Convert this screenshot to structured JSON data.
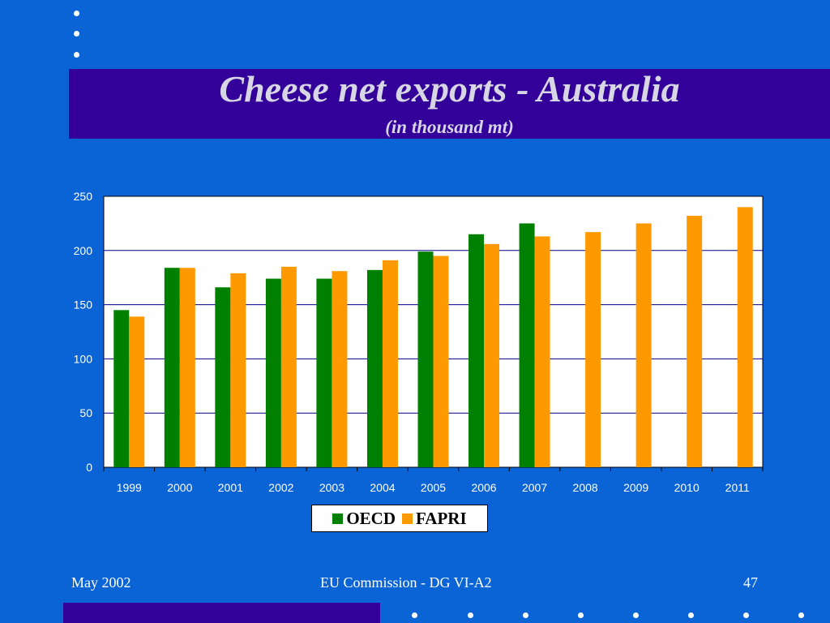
{
  "slide": {
    "title": "Cheese net exports - Australia",
    "subtitle": "(in thousand mt)",
    "footer_left": "May 2002",
    "footer_center": "EU Commission - DG VI-A2",
    "footer_right": "47"
  },
  "colors": {
    "background": "#0b64d6",
    "title_band": "#330099",
    "oecd": "#008000",
    "fapri": "#ff9900"
  },
  "chart_data": {
    "type": "bar",
    "title": "",
    "xlabel": "",
    "ylabel": "",
    "ylim": [
      0,
      250
    ],
    "yticks": [
      0,
      50,
      100,
      150,
      200,
      250
    ],
    "grid": true,
    "legend_position": "bottom",
    "categories": [
      "1999",
      "2000",
      "2001",
      "2002",
      "2003",
      "2004",
      "2005",
      "2006",
      "2007",
      "2008",
      "2009",
      "2010",
      "2011"
    ],
    "series": [
      {
        "name": "OECD",
        "color": "#008000",
        "values": [
          145,
          184,
          166,
          174,
          174,
          182,
          199,
          215,
          225,
          null,
          null,
          null,
          null
        ]
      },
      {
        "name": "FAPRI",
        "color": "#ff9900",
        "values": [
          139,
          184,
          179,
          185,
          181,
          191,
          195,
          206,
          213,
          217,
          225,
          232,
          240
        ]
      }
    ]
  }
}
